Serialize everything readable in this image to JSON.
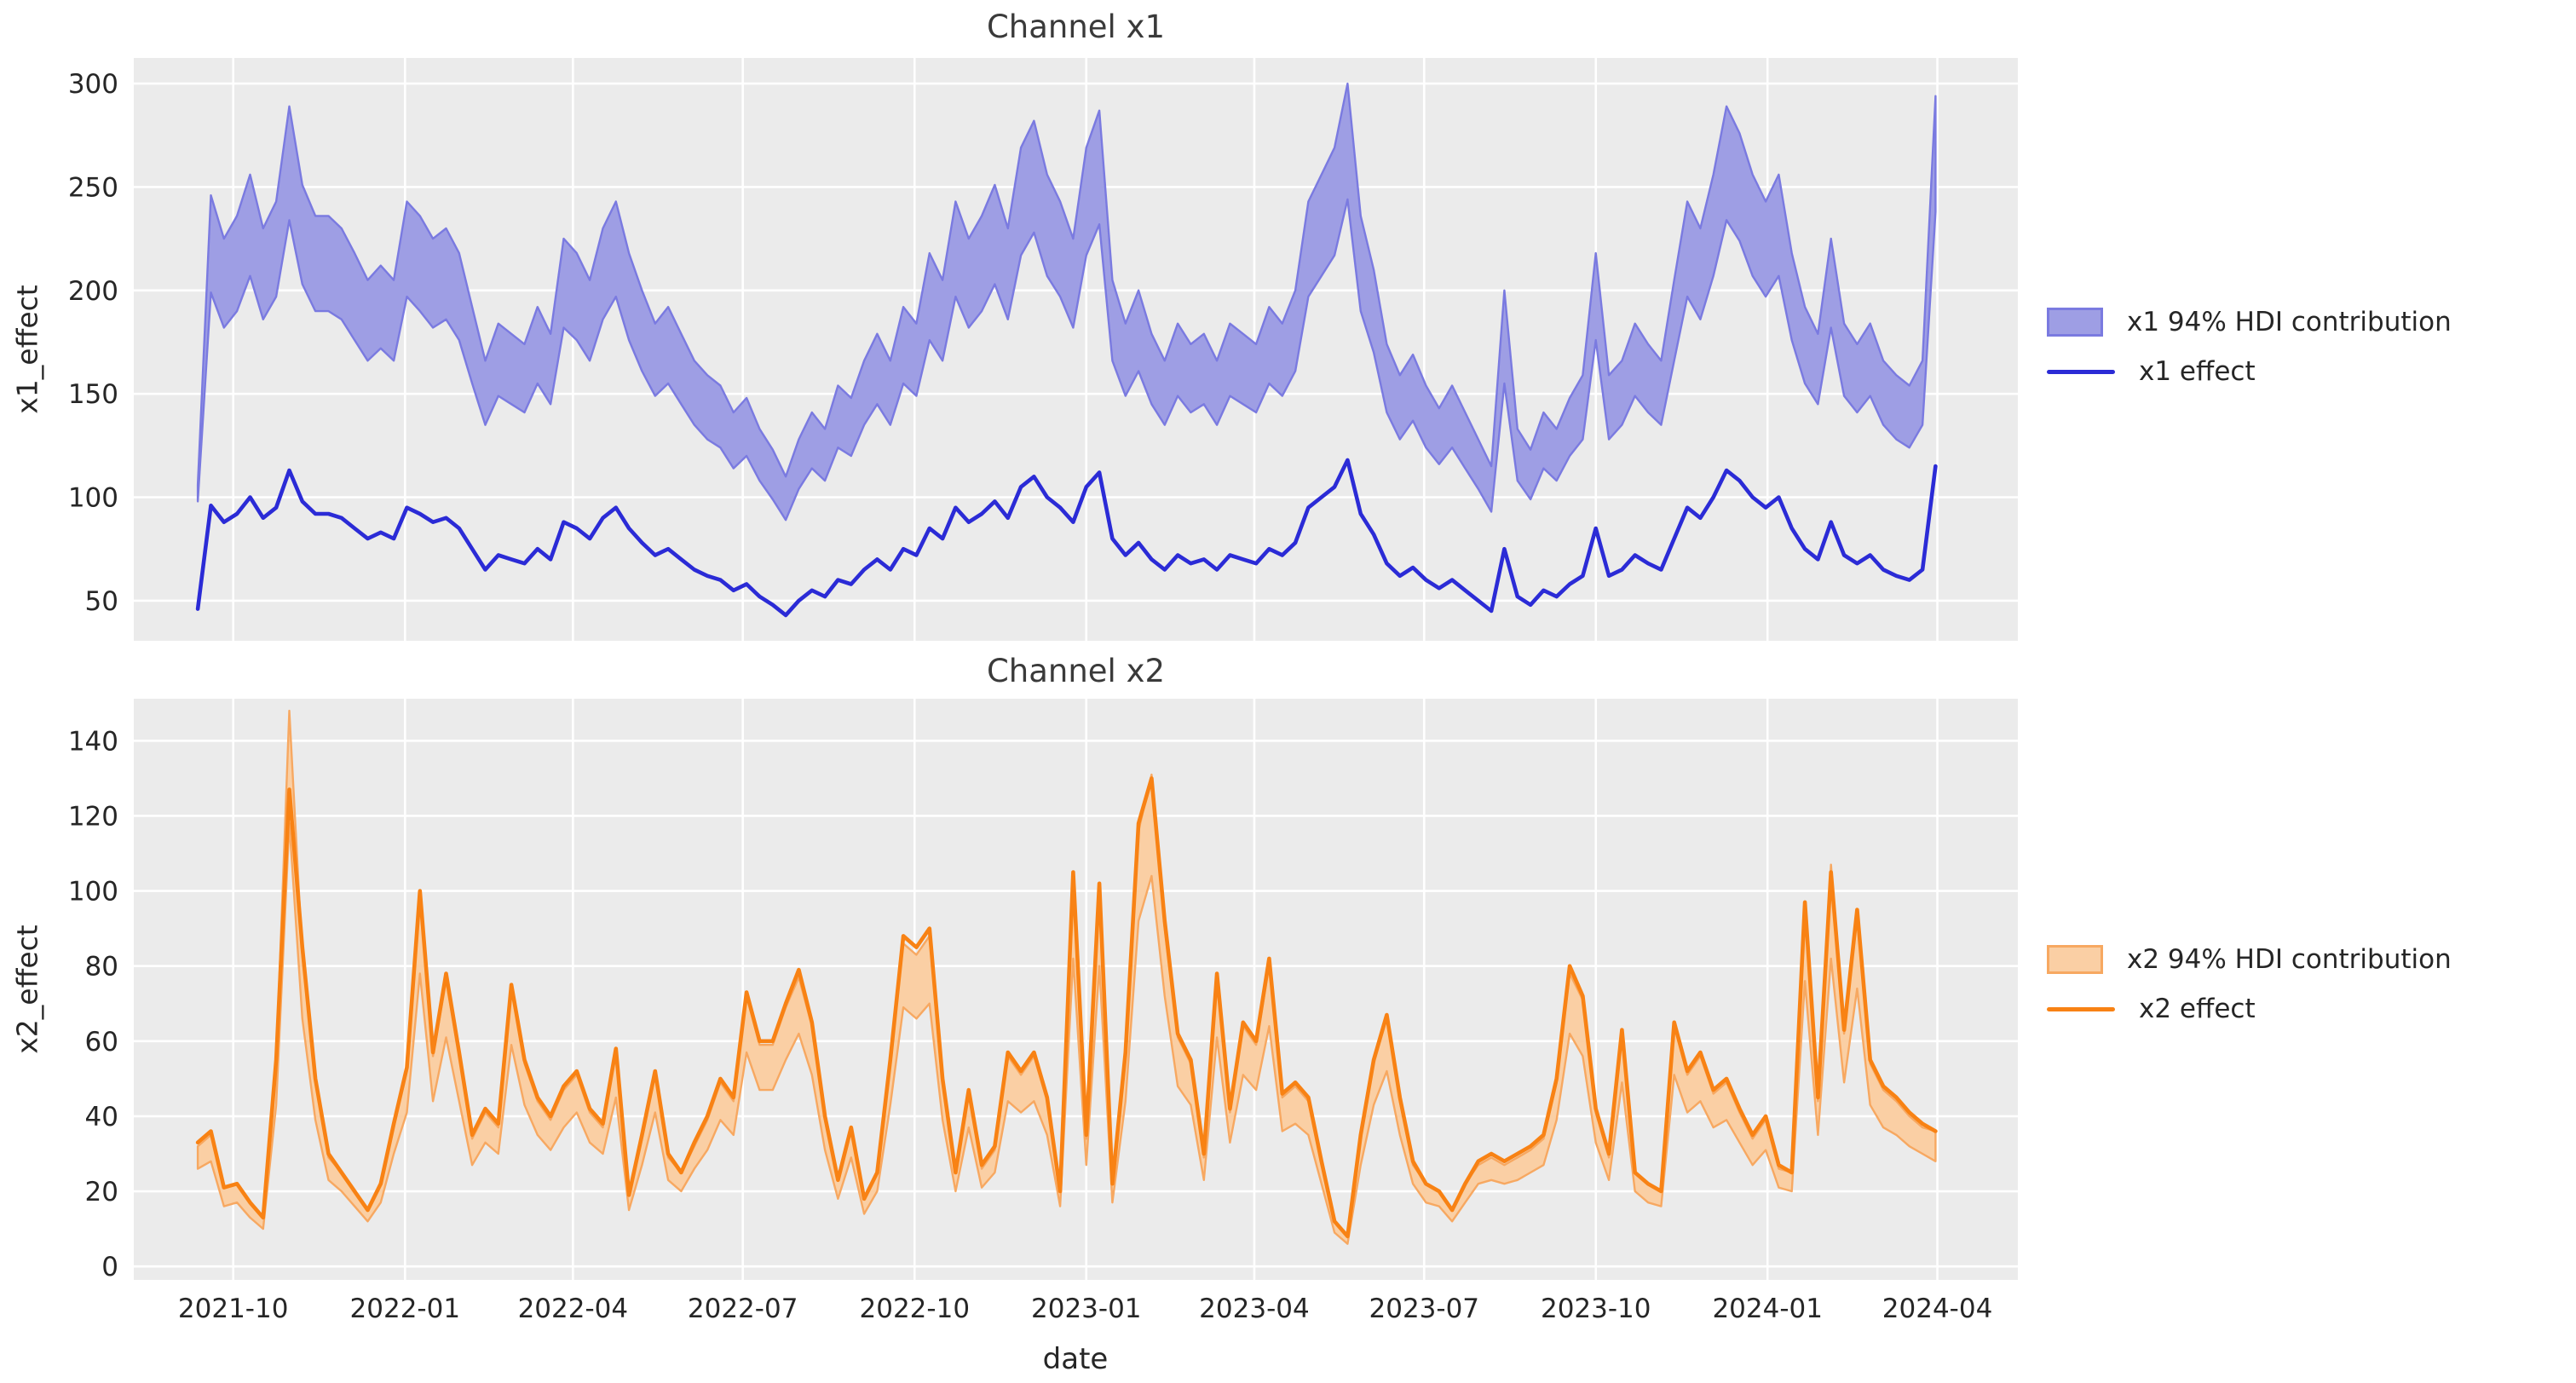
{
  "figure": {
    "background": "#ffffff",
    "plot_background": "#ebebeb",
    "grid_color": "#ffffff",
    "text_color": "#262626",
    "tick_color": "#262626",
    "xlabel": "date",
    "x_tick_labels": [
      "2021-10",
      "2022-01",
      "2022-04",
      "2022-07",
      "2022-10",
      "2023-01",
      "2023-04",
      "2023-07",
      "2023-10",
      "2024-01",
      "2024-04"
    ],
    "x_tick_week_offsets": [
      2.71,
      15.86,
      28.71,
      41.71,
      54.86,
      68.0,
      80.86,
      93.86,
      107.0,
      120.14,
      133.14
    ]
  },
  "chart_data": [
    {
      "type": "line+band",
      "title": "Channel x1",
      "ylabel": "x1_effect",
      "x_unit": "weeks from first point (weekly series, 2021-09 to 2024-04)",
      "n_points": 134,
      "xlim_weeks": [
        -4.9,
        139.3
      ],
      "ylim": [
        30.6,
        312.4
      ],
      "y_ticks": [
        50,
        100,
        150,
        200,
        250,
        300
      ],
      "grid": true,
      "legend_position": "right",
      "legend": [
        {
          "label": "x1 94% HDI contribution",
          "type": "band"
        },
        {
          "label": "x1 effect",
          "type": "line"
        }
      ],
      "colors": {
        "line": "#2b2bd6",
        "band_fill": "#9e9ee4",
        "band_edge": "#7a7ae0"
      },
      "series": {
        "effect": [
          46,
          96,
          88,
          92,
          100,
          90,
          95,
          113,
          98,
          92,
          92,
          90,
          85,
          80,
          83,
          80,
          95,
          92,
          88,
          90,
          85,
          75,
          65,
          72,
          70,
          68,
          75,
          70,
          88,
          85,
          80,
          90,
          95,
          85,
          78,
          72,
          75,
          70,
          65,
          62,
          60,
          55,
          58,
          52,
          48,
          43,
          50,
          55,
          52,
          60,
          58,
          65,
          70,
          65,
          75,
          72,
          85,
          80,
          95,
          88,
          92,
          98,
          90,
          105,
          110,
          100,
          95,
          88,
          105,
          112,
          80,
          72,
          78,
          70,
          65,
          72,
          68,
          70,
          65,
          72,
          70,
          68,
          75,
          72,
          78,
          95,
          100,
          105,
          118,
          92,
          82,
          68,
          62,
          66,
          60,
          56,
          60,
          55,
          50,
          45,
          75,
          52,
          48,
          55,
          52,
          58,
          62,
          85,
          62,
          65,
          72,
          68,
          65,
          80,
          95,
          90,
          100,
          113,
          108,
          100,
          95,
          100,
          85,
          75,
          70,
          88,
          72,
          68,
          72,
          65,
          62,
          60,
          65,
          115
        ],
        "hdi_low": [
          98,
          199,
          182,
          190,
          207,
          186,
          197,
          234,
          203,
          190,
          190,
          186,
          176,
          166,
          172,
          166,
          197,
          190,
          182,
          186,
          176,
          155,
          135,
          149,
          145,
          141,
          155,
          145,
          182,
          176,
          166,
          186,
          197,
          176,
          161,
          149,
          155,
          145,
          135,
          128,
          124,
          114,
          120,
          108,
          99,
          89,
          104,
          114,
          108,
          124,
          120,
          135,
          145,
          135,
          155,
          149,
          176,
          166,
          197,
          182,
          190,
          203,
          186,
          217,
          228,
          207,
          197,
          182,
          217,
          232,
          166,
          149,
          161,
          145,
          135,
          149,
          141,
          145,
          135,
          149,
          145,
          141,
          155,
          149,
          161,
          197,
          207,
          217,
          244,
          190,
          170,
          141,
          128,
          137,
          124,
          116,
          124,
          114,
          104,
          93,
          155,
          108,
          99,
          114,
          108,
          120,
          128,
          176,
          128,
          135,
          149,
          141,
          135,
          166,
          197,
          186,
          207,
          234,
          224,
          207,
          197,
          207,
          176,
          155,
          145,
          182,
          149,
          141,
          149,
          135,
          128,
          124,
          135,
          238
        ],
        "hdi_high": [
          106,
          246,
          225,
          236,
          256,
          230,
          243,
          289,
          251,
          236,
          236,
          230,
          218,
          205,
          212,
          205,
          243,
          236,
          225,
          230,
          218,
          192,
          166,
          184,
          179,
          174,
          192,
          179,
          225,
          218,
          205,
          230,
          243,
          218,
          200,
          184,
          192,
          179,
          166,
          159,
          154,
          141,
          148,
          133,
          123,
          110,
          128,
          141,
          133,
          154,
          148,
          166,
          179,
          166,
          192,
          184,
          218,
          205,
          243,
          225,
          236,
          251,
          230,
          269,
          282,
          256,
          243,
          225,
          269,
          287,
          205,
          184,
          200,
          179,
          166,
          184,
          174,
          179,
          166,
          184,
          179,
          174,
          192,
          184,
          200,
          243,
          256,
          269,
          300,
          236,
          210,
          174,
          159,
          169,
          154,
          143,
          154,
          141,
          128,
          115,
          200,
          133,
          123,
          141,
          133,
          148,
          159,
          218,
          159,
          166,
          184,
          174,
          166,
          205,
          243,
          230,
          256,
          289,
          276,
          256,
          243,
          256,
          218,
          192,
          179,
          225,
          184,
          174,
          184,
          166,
          159,
          154,
          166,
          294
        ]
      }
    },
    {
      "type": "line+band",
      "title": "Channel x2",
      "ylabel": "x2_effect",
      "x_unit": "weeks from first point (weekly series, 2021-09 to 2024-04)",
      "n_points": 134,
      "xlim_weeks": [
        -4.9,
        139.3
      ],
      "ylim": [
        -3.6,
        151.2
      ],
      "y_ticks": [
        0,
        20,
        40,
        60,
        80,
        100,
        120,
        140
      ],
      "grid": true,
      "legend_position": "right",
      "legend": [
        {
          "label": "x2 94% HDI contribution",
          "type": "band"
        },
        {
          "label": "x2 effect",
          "type": "line"
        }
      ],
      "colors": {
        "line": "#f88214",
        "band_fill": "#facfa4",
        "band_edge": "#f7a861"
      },
      "series": {
        "effect": [
          33,
          36,
          21,
          22,
          17,
          13,
          55,
          127,
          85,
          50,
          30,
          25,
          20,
          15,
          22,
          38,
          53,
          100,
          57,
          78,
          57,
          35,
          42,
          38,
          75,
          55,
          45,
          40,
          48,
          52,
          42,
          38,
          58,
          19,
          35,
          52,
          30,
          25,
          33,
          40,
          50,
          45,
          73,
          60,
          60,
          70,
          79,
          65,
          40,
          23,
          37,
          18,
          25,
          55,
          88,
          85,
          90,
          50,
          25,
          47,
          27,
          32,
          57,
          52,
          57,
          45,
          20,
          105,
          35,
          102,
          22,
          57,
          118,
          130,
          92,
          62,
          55,
          30,
          78,
          42,
          65,
          60,
          82,
          46,
          49,
          45,
          28,
          12,
          8,
          35,
          55,
          67,
          45,
          28,
          22,
          20,
          15,
          22,
          28,
          30,
          28,
          30,
          32,
          35,
          50,
          80,
          72,
          42,
          30,
          63,
          25,
          22,
          20,
          65,
          52,
          57,
          47,
          50,
          42,
          35,
          40,
          27,
          25,
          97,
          45,
          105,
          63,
          95,
          55,
          48,
          45,
          41,
          38,
          36
        ],
        "hdi_low": [
          26,
          28,
          16,
          17,
          13,
          10,
          43,
          118,
          66,
          39,
          23,
          20,
          16,
          12,
          17,
          30,
          41,
          78,
          44,
          61,
          44,
          27,
          33,
          30,
          59,
          43,
          35,
          31,
          37,
          41,
          33,
          30,
          45,
          15,
          27,
          41,
          23,
          20,
          26,
          31,
          39,
          35,
          57,
          47,
          47,
          55,
          62,
          51,
          31,
          18,
          29,
          14,
          20,
          43,
          69,
          66,
          70,
          39,
          20,
          37,
          21,
          25,
          44,
          41,
          44,
          35,
          16,
          82,
          27,
          80,
          17,
          44,
          92,
          104,
          72,
          48,
          43,
          23,
          61,
          33,
          51,
          47,
          64,
          36,
          38,
          35,
          22,
          9,
          6,
          27,
          43,
          52,
          35,
          22,
          17,
          16,
          12,
          17,
          22,
          23,
          22,
          23,
          25,
          27,
          39,
          62,
          56,
          33,
          23,
          49,
          20,
          17,
          16,
          51,
          41,
          44,
          37,
          39,
          33,
          27,
          31,
          21,
          20,
          76,
          35,
          82,
          49,
          74,
          43,
          37,
          35,
          32,
          30,
          28
        ],
        "hdi_high": [
          32,
          35,
          21,
          22,
          17,
          13,
          54,
          148,
          83,
          49,
          29,
          25,
          20,
          15,
          22,
          37,
          52,
          98,
          56,
          76,
          56,
          34,
          41,
          37,
          74,
          54,
          44,
          39,
          47,
          51,
          41,
          37,
          57,
          19,
          34,
          51,
          29,
          25,
          32,
          39,
          49,
          44,
          72,
          59,
          59,
          69,
          77,
          64,
          39,
          23,
          36,
          18,
          25,
          54,
          86,
          83,
          88,
          49,
          25,
          46,
          26,
          31,
          56,
          51,
          56,
          44,
          20,
          103,
          34,
          100,
          22,
          56,
          116,
          131,
          90,
          61,
          54,
          29,
          76,
          41,
          64,
          59,
          80,
          45,
          48,
          44,
          27,
          12,
          8,
          34,
          54,
          66,
          44,
          27,
          22,
          20,
          15,
          22,
          27,
          29,
          27,
          29,
          31,
          34,
          49,
          78,
          71,
          41,
          29,
          62,
          25,
          22,
          20,
          64,
          51,
          56,
          46,
          49,
          41,
          34,
          39,
          26,
          25,
          95,
          44,
          107,
          62,
          93,
          54,
          47,
          44,
          40,
          37,
          36
        ]
      }
    }
  ]
}
